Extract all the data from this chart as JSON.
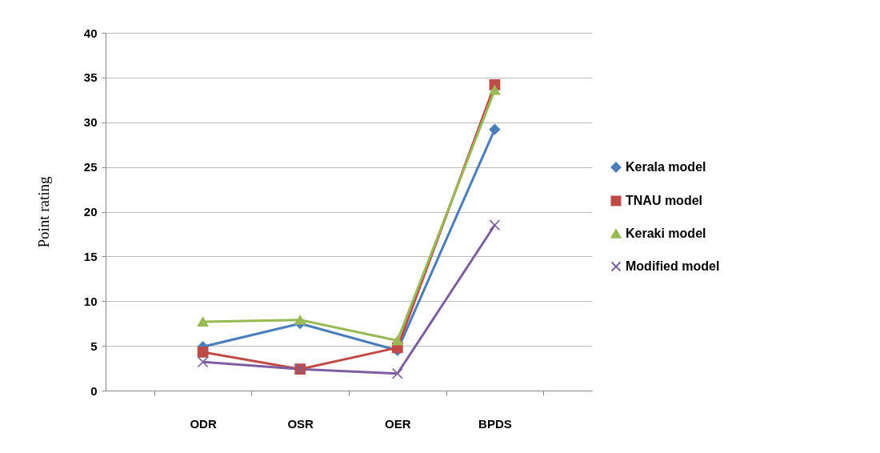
{
  "chart_data": {
    "type": "line",
    "ylabel": "Point rating",
    "categories": [
      "ODR",
      "OSR",
      "OER",
      "BPDS"
    ],
    "series": [
      {
        "name": "Kerala model",
        "color": "#4a7ebb",
        "marker": "diamond",
        "values": [
          4.9,
          7.5,
          4.5,
          29.2
        ]
      },
      {
        "name": "TNAU model",
        "color": "#be4b48",
        "marker": "square",
        "values": [
          4.3,
          2.4,
          4.8,
          34.2
        ]
      },
      {
        "name": "Keraki model",
        "color": "#98b954",
        "marker": "triangle",
        "values": [
          7.7,
          7.9,
          5.6,
          33.6
        ]
      },
      {
        "name": "Modified model",
        "color": "#7d5fa0",
        "marker": "cross",
        "values": [
          3.2,
          2.4,
          1.9,
          18.5
        ]
      }
    ],
    "ylim": [
      0,
      40
    ],
    "yticks": [
      0,
      5,
      10,
      15,
      20,
      25,
      30,
      35,
      40
    ],
    "grid": "y",
    "legend": "right"
  }
}
